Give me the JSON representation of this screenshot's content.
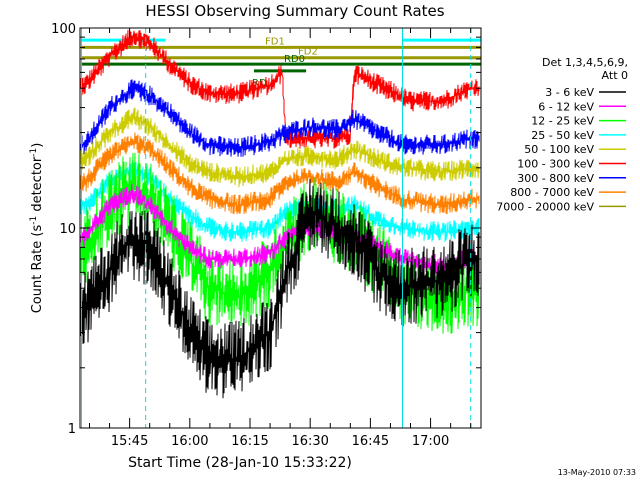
{
  "chart_data": {
    "type": "line",
    "title": "HESSI Observing Summary Count Rates",
    "xlabel": "Start Time (28-Jan-10 15:33:22)",
    "ylabel_main": "Count Rate (s",
    "ylabel_sup": "-1",
    "ylabel_rest": " detector",
    "ylabel_sup2": "-1",
    "ylabel_end": ")",
    "yscale": "log",
    "ylim": [
      1,
      100
    ],
    "xlim": [
      "15:33",
      "17:12"
    ],
    "x_ticks": [
      "15:45",
      "16:00",
      "16:15",
      "16:30",
      "16:45",
      "17:00"
    ],
    "y_ticks": [
      "1",
      "10",
      "100"
    ],
    "timestamp": "13-May-2010 07:33",
    "legend": {
      "header1": "Det 1,3,4,5,6,9,",
      "header2": "Att 0",
      "entries": [
        {
          "label": "3 - 6 keV",
          "color": "#000000"
        },
        {
          "label": "6 - 12 keV",
          "color": "#ff00ff"
        },
        {
          "label": "12 - 25 keV",
          "color": "#00ff00"
        },
        {
          "label": "25 - 50 keV",
          "color": "#00ffff"
        },
        {
          "label": "50 - 100 keV",
          "color": "#cccc00"
        },
        {
          "label": "100 - 300 keV",
          "color": "#ff0000"
        },
        {
          "label": "300 - 800 keV",
          "color": "#0000ff"
        },
        {
          "label": "800 - 7000 keV",
          "color": "#ff8000"
        },
        {
          "label": "7000 - 20000 keV",
          "color": "#999900"
        }
      ]
    },
    "flags": [
      {
        "label": "FD1",
        "color": "#999900",
        "start": "15:33",
        "end": "17:12",
        "y": 80
      },
      {
        "label": "FD2",
        "color": "#999900",
        "start": "15:33",
        "end": "17:12",
        "y": 71
      },
      {
        "label": "RD0",
        "color": "#006600",
        "start": "15:33",
        "end": "17:12",
        "y": 66
      },
      {
        "label": "RD",
        "color": "#006600",
        "start": "16:16",
        "end": "16:24",
        "y": 61
      }
    ],
    "vertical_markers": [
      {
        "time": "15:33",
        "style": "solid"
      },
      {
        "time": "15:49",
        "style": "dashed"
      },
      {
        "time": "16:53",
        "style": "solid"
      },
      {
        "time": "17:10",
        "style": "dashed"
      }
    ],
    "cyan_bars": [
      {
        "start": "15:33",
        "end": "15:49",
        "y": 87
      },
      {
        "start": "16:53",
        "end": "17:12",
        "y": 87
      }
    ],
    "series": [
      {
        "name": "100 - 300 keV",
        "color": "#ff0000",
        "points": [
          [
            "15:34",
            52
          ],
          [
            "15:40",
            72
          ],
          [
            "15:46",
            92
          ],
          [
            "15:50",
            84
          ],
          [
            "15:55",
            66
          ],
          [
            "16:00",
            53
          ],
          [
            "16:05",
            47
          ],
          [
            "16:12",
            47
          ],
          [
            "16:20",
            52
          ],
          [
            "16:23",
            60
          ],
          [
            "16:24",
            28
          ],
          [
            "16:30",
            28
          ],
          [
            "16:36",
            28
          ],
          [
            "16:40",
            29
          ],
          [
            "16:41",
            60
          ],
          [
            "16:47",
            52
          ],
          [
            "16:55",
            43
          ],
          [
            "17:03",
            43
          ],
          [
            "17:10",
            50
          ]
        ]
      },
      {
        "name": "300 - 800 keV",
        "color": "#0000ff",
        "points": [
          [
            "15:34",
            26
          ],
          [
            "15:40",
            40
          ],
          [
            "15:46",
            50
          ],
          [
            "15:50",
            46
          ],
          [
            "15:55",
            38
          ],
          [
            "16:00",
            30
          ],
          [
            "16:05",
            26
          ],
          [
            "16:12",
            25
          ],
          [
            "16:20",
            27
          ],
          [
            "16:24",
            30
          ],
          [
            "16:30",
            32
          ],
          [
            "16:37",
            31
          ],
          [
            "16:41",
            35
          ],
          [
            "16:47",
            30
          ],
          [
            "16:53",
            26
          ],
          [
            "17:03",
            26
          ],
          [
            "17:10",
            28
          ]
        ]
      },
      {
        "name": "50 - 100 keV",
        "color": "#cccc00",
        "points": [
          [
            "15:34",
            22
          ],
          [
            "15:40",
            30
          ],
          [
            "15:46",
            36
          ],
          [
            "15:50",
            32
          ],
          [
            "15:55",
            26
          ],
          [
            "16:00",
            21
          ],
          [
            "16:05",
            19
          ],
          [
            "16:12",
            18
          ],
          [
            "16:20",
            19
          ],
          [
            "16:24",
            22
          ],
          [
            "16:30",
            23
          ],
          [
            "16:37",
            22
          ],
          [
            "16:41",
            25
          ],
          [
            "16:47",
            22
          ],
          [
            "16:53",
            20
          ],
          [
            "17:03",
            19
          ],
          [
            "17:10",
            20
          ]
        ]
      },
      {
        "name": "800 - 7000 keV",
        "color": "#ff8000",
        "points": [
          [
            "15:34",
            17
          ],
          [
            "15:40",
            23
          ],
          [
            "15:46",
            27
          ],
          [
            "15:50",
            25
          ],
          [
            "15:55",
            20
          ],
          [
            "16:00",
            16
          ],
          [
            "16:05",
            14
          ],
          [
            "16:12",
            13
          ],
          [
            "16:20",
            14
          ],
          [
            "16:24",
            17
          ],
          [
            "16:30",
            18
          ],
          [
            "16:37",
            17
          ],
          [
            "16:41",
            19
          ],
          [
            "16:47",
            16
          ],
          [
            "16:53",
            14
          ],
          [
            "17:03",
            13
          ],
          [
            "17:10",
            14
          ]
        ]
      },
      {
        "name": "25 - 50 keV",
        "color": "#00ffff",
        "points": [
          [
            "15:34",
            13
          ],
          [
            "15:40",
            17
          ],
          [
            "15:46",
            20
          ],
          [
            "15:50",
            18
          ],
          [
            "15:55",
            14
          ],
          [
            "16:00",
            11.5
          ],
          [
            "16:05",
            10
          ],
          [
            "16:12",
            9.5
          ],
          [
            "16:20",
            10
          ],
          [
            "16:24",
            12
          ],
          [
            "16:30",
            13
          ],
          [
            "16:37",
            12.5
          ],
          [
            "16:41",
            13
          ],
          [
            "16:47",
            11
          ],
          [
            "16:53",
            10
          ],
          [
            "17:03",
            9.5
          ],
          [
            "17:10",
            10
          ]
        ]
      },
      {
        "name": "12 - 25 keV",
        "color": "#00ff00",
        "points": [
          [
            "15:34",
            8
          ],
          [
            "15:40",
            13
          ],
          [
            "15:46",
            16
          ],
          [
            "15:50",
            14
          ],
          [
            "15:55",
            10
          ],
          [
            "16:00",
            7
          ],
          [
            "16:05",
            5
          ],
          [
            "16:12",
            4.5
          ],
          [
            "16:20",
            6
          ],
          [
            "16:24",
            9
          ],
          [
            "16:30",
            12
          ],
          [
            "16:37",
            10
          ],
          [
            "16:41",
            9
          ],
          [
            "16:47",
            7
          ],
          [
            "16:53",
            5
          ],
          [
            "17:03",
            4.5
          ],
          [
            "17:10",
            5
          ]
        ]
      },
      {
        "name": "6 - 12 keV",
        "color": "#ff00ff",
        "points": [
          [
            "15:34",
            9
          ],
          [
            "15:40",
            13
          ],
          [
            "15:46",
            15
          ],
          [
            "15:50",
            13
          ],
          [
            "15:55",
            10
          ],
          [
            "16:00",
            8
          ],
          [
            "16:05",
            7
          ],
          [
            "16:12",
            7
          ],
          [
            "16:20",
            7.5
          ],
          [
            "16:24",
            9
          ],
          [
            "16:30",
            10
          ],
          [
            "16:37",
            9.5
          ],
          [
            "16:41",
            9
          ],
          [
            "16:47",
            8
          ],
          [
            "16:53",
            7
          ],
          [
            "17:03",
            6.5
          ],
          [
            "17:10",
            7
          ]
        ]
      },
      {
        "name": "3 - 6 keV",
        "color": "#000000",
        "points": [
          [
            "15:34",
            4
          ],
          [
            "15:40",
            6
          ],
          [
            "15:44",
            8.5
          ],
          [
            "15:50",
            8
          ],
          [
            "15:55",
            5
          ],
          [
            "16:00",
            3
          ],
          [
            "16:05",
            2.2
          ],
          [
            "16:12",
            2.2
          ],
          [
            "16:20",
            3
          ],
          [
            "16:24",
            6
          ],
          [
            "16:30",
            12
          ],
          [
            "16:37",
            10
          ],
          [
            "16:41",
            9
          ],
          [
            "16:47",
            6
          ],
          [
            "16:53",
            5
          ],
          [
            "17:03",
            5.5
          ],
          [
            "17:10",
            7
          ]
        ]
      }
    ]
  }
}
